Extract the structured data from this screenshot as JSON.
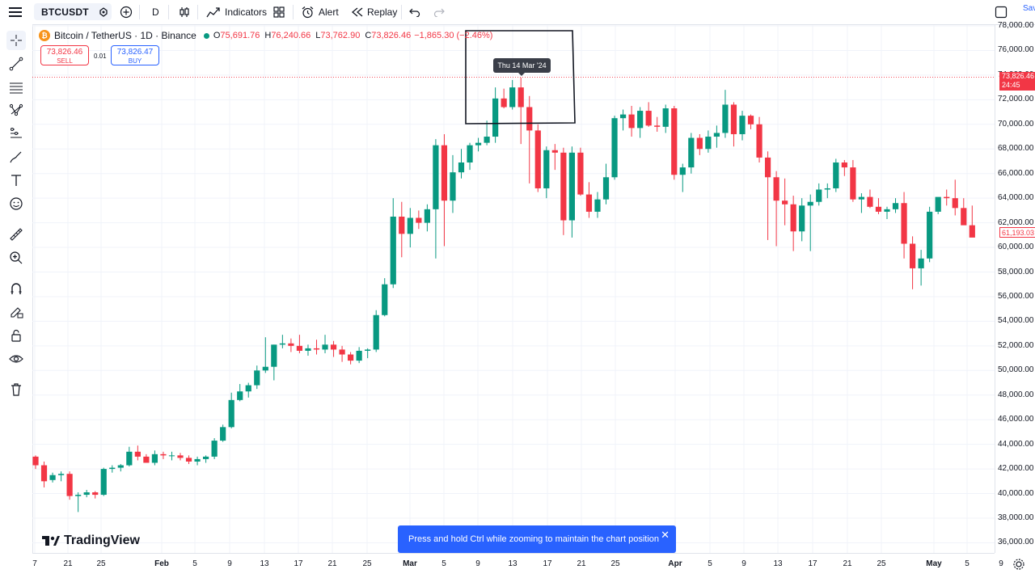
{
  "toolbar": {
    "symbol": "BTCUSDT",
    "interval": "D",
    "indicators_label": "Indicators",
    "alert_label": "Alert",
    "replay_label": "Replay",
    "save_label": "Sav"
  },
  "legend": {
    "title": "Bitcoin / TetherUS · 1D · Binance",
    "o_label": "O",
    "o": "75,691.76",
    "h_label": "H",
    "h": "76,240.66",
    "l_label": "L",
    "l": "73,762.90",
    "c_label": "C",
    "c": "73,826.46",
    "change": "−1,865.30 (−2.46%)",
    "coin_icon": "₿"
  },
  "trade": {
    "sell_price": "73,826.46",
    "sell_label": "SELL",
    "spread": "0.01",
    "buy_price": "73,826.47",
    "buy_label": "BUY"
  },
  "tooltip": {
    "date": "Thu 14 Mar '24"
  },
  "price_axis": {
    "labels": [
      "78,000.00",
      "76,000.00",
      "74,000.00",
      "72,000.00",
      "70,000.00",
      "68,000.00",
      "66,000.00",
      "64,000.00",
      "62,000.00",
      "60,000.00",
      "58,000.00",
      "56,000.00",
      "54,000.00",
      "52,000.00",
      "50,000.00",
      "48,000.00",
      "46,000.00",
      "44,000.00",
      "42,000.00",
      "40,000.00",
      "38,000.00",
      "36,000.00"
    ],
    "current_price": "73,826.46",
    "countdown": "24:45",
    "crosshair_price": "61,193.03"
  },
  "time_axis": {
    "labels": [
      "7",
      "21",
      "25",
      "Feb",
      "5",
      "9",
      "13",
      "17",
      "21",
      "25",
      "Mar",
      "5",
      "9",
      "13",
      "17",
      "21",
      "25",
      "Apr",
      "5",
      "9",
      "13",
      "17",
      "21",
      "25",
      "May",
      "5",
      "9"
    ]
  },
  "branding": {
    "logo_text": "TradingView",
    "logo_mark": "17"
  },
  "toast": {
    "message": "Press and hold Ctrl while zooming to maintain the chart position",
    "close": "✕"
  },
  "colors": {
    "up": "#089981",
    "down": "#f23645",
    "accent": "#2962ff",
    "grid": "#f0f3fa"
  },
  "chart_data": {
    "type": "candlestick",
    "title": "Bitcoin / TetherUS · 1D · Binance",
    "x_start": "2024-01-16",
    "ylim": [
      35500,
      78500
    ],
    "grid": true,
    "candles": [
      [
        43000,
        43100,
        42000,
        42300
      ],
      [
        42300,
        42600,
        40500,
        41000
      ],
      [
        41100,
        41700,
        40900,
        41500
      ],
      [
        41500,
        41800,
        41000,
        41600
      ],
      [
        41600,
        41800,
        39500,
        39800
      ],
      [
        39800,
        40100,
        38500,
        39900
      ],
      [
        39900,
        40300,
        39700,
        40100
      ],
      [
        40100,
        40200,
        39600,
        39900
      ],
      [
        39900,
        42100,
        39800,
        42000
      ],
      [
        42000,
        42300,
        41700,
        42100
      ],
      [
        42100,
        42400,
        41800,
        42300
      ],
      [
        42300,
        43800,
        42200,
        43400
      ],
      [
        43400,
        43900,
        42700,
        43000
      ],
      [
        43000,
        43200,
        42500,
        42500
      ],
      [
        42500,
        43500,
        42300,
        43200
      ],
      [
        43200,
        43400,
        42800,
        43100
      ],
      [
        43100,
        43400,
        42700,
        43100
      ],
      [
        43100,
        43300,
        42700,
        42900
      ],
      [
        42900,
        43100,
        42400,
        42600
      ],
      [
        42600,
        43000,
        42300,
        42800
      ],
      [
        42800,
        43100,
        42500,
        43000
      ],
      [
        43000,
        44500,
        42800,
        44300
      ],
      [
        44300,
        45600,
        44200,
        45400
      ],
      [
        45400,
        48200,
        45300,
        47600
      ],
      [
        47600,
        48900,
        47500,
        48300
      ],
      [
        48300,
        49000,
        47800,
        48800
      ],
      [
        48800,
        50400,
        48500,
        50000
      ],
      [
        50000,
        52700,
        49800,
        50300
      ],
      [
        50300,
        52100,
        49200,
        52100
      ],
      [
        52100,
        52900,
        51800,
        52200
      ],
      [
        52200,
        52600,
        51500,
        52000
      ],
      [
        52000,
        52900,
        51400,
        51600
      ],
      [
        51600,
        52100,
        51200,
        51800
      ],
      [
        51800,
        52500,
        51300,
        51700
      ],
      [
        51700,
        52900,
        51400,
        52100
      ],
      [
        52100,
        52400,
        51100,
        51700
      ],
      [
        51700,
        52000,
        50700,
        51300
      ],
      [
        51300,
        51500,
        50500,
        50800
      ],
      [
        50800,
        51900,
        50600,
        51600
      ],
      [
        51600,
        51800,
        51000,
        51700
      ],
      [
        51700,
        54900,
        51500,
        54500
      ],
      [
        54500,
        57500,
        54400,
        57000
      ],
      [
        57000,
        64000,
        56700,
        62500
      ],
      [
        62500,
        63700,
        59200,
        61100
      ],
      [
        61100,
        63200,
        60000,
        62400
      ],
      [
        62400,
        63000,
        61500,
        62000
      ],
      [
        62000,
        63500,
        61300,
        63100
      ],
      [
        63100,
        68800,
        59100,
        68300
      ],
      [
        68300,
        69200,
        60100,
        63800
      ],
      [
        63800,
        67500,
        62800,
        66100
      ],
      [
        66100,
        68000,
        65600,
        66900
      ],
      [
        66900,
        68500,
        66300,
        68300
      ],
      [
        68300,
        68900,
        67800,
        68500
      ],
      [
        68500,
        70300,
        68300,
        69000
      ],
      [
        69000,
        73000,
        68500,
        72100
      ],
      [
        72100,
        72900,
        71300,
        71400
      ],
      [
        71400,
        73600,
        71200,
        73000
      ],
      [
        73000,
        73800,
        68400,
        71400
      ],
      [
        71400,
        72300,
        65200,
        69500
      ],
      [
        69500,
        70000,
        64500,
        64800
      ],
      [
        64800,
        68200,
        64000,
        67900
      ],
      [
        67900,
        68400,
        66300,
        67700
      ],
      [
        67700,
        68100,
        61000,
        62200
      ],
      [
        62200,
        68200,
        60800,
        67700
      ],
      [
        67700,
        68100,
        64200,
        64300
      ],
      [
        64300,
        65300,
        62400,
        62900
      ],
      [
        62900,
        64500,
        62400,
        63900
      ],
      [
        63900,
        66800,
        63500,
        65700
      ],
      [
        65700,
        70700,
        65500,
        70500
      ],
      [
        70500,
        71200,
        69500,
        70800
      ],
      [
        70800,
        71500,
        69000,
        69700
      ],
      [
        69700,
        71400,
        68900,
        71100
      ],
      [
        71100,
        71800,
        69800,
        69900
      ],
      [
        69900,
        70600,
        69400,
        69800
      ],
      [
        69800,
        71600,
        69300,
        71300
      ],
      [
        71300,
        71500,
        65500,
        65900
      ],
      [
        65900,
        66800,
        64500,
        66500
      ],
      [
        66500,
        69300,
        66000,
        68900
      ],
      [
        68900,
        69200,
        67500,
        68000
      ],
      [
        68000,
        69500,
        67700,
        69000
      ],
      [
        69000,
        69900,
        68100,
        69300
      ],
      [
        69300,
        72800,
        68900,
        71600
      ],
      [
        71600,
        71800,
        68200,
        69200
      ],
      [
        69200,
        71100,
        68700,
        70700
      ],
      [
        70700,
        70800,
        69600,
        70000
      ],
      [
        70000,
        70600,
        66900,
        67300
      ],
      [
        67300,
        67800,
        60600,
        65700
      ],
      [
        65700,
        66200,
        60100,
        63800
      ],
      [
        63800,
        65600,
        61800,
        63500
      ],
      [
        63500,
        64200,
        59700,
        61300
      ],
      [
        61300,
        64000,
        60500,
        63400
      ],
      [
        63400,
        64300,
        59700,
        63700
      ],
      [
        63700,
        65200,
        63400,
        64700
      ],
      [
        64700,
        65200,
        64000,
        64800
      ],
      [
        64800,
        67200,
        64500,
        66900
      ],
      [
        66900,
        67100,
        65800,
        66500
      ],
      [
        66500,
        67100,
        63700,
        63900
      ],
      [
        63900,
        64400,
        62800,
        64100
      ],
      [
        64100,
        64700,
        63200,
        63300
      ],
      [
        63300,
        64000,
        62700,
        62900
      ],
      [
        62900,
        63300,
        62300,
        63100
      ],
      [
        63100,
        64000,
        62800,
        63600
      ],
      [
        63600,
        64500,
        59100,
        60300
      ],
      [
        60300,
        60900,
        56600,
        58300
      ],
      [
        58300,
        59800,
        56900,
        59100
      ],
      [
        59100,
        63300,
        58800,
        62900
      ],
      [
        62900,
        64000,
        62700,
        64100
      ],
      [
        64100,
        64700,
        63400,
        64000
      ],
      [
        64000,
        65500,
        62600,
        63200
      ],
      [
        63200,
        64000,
        62200,
        61800
      ],
      [
        61800,
        63400,
        60900,
        60800
      ]
    ]
  }
}
